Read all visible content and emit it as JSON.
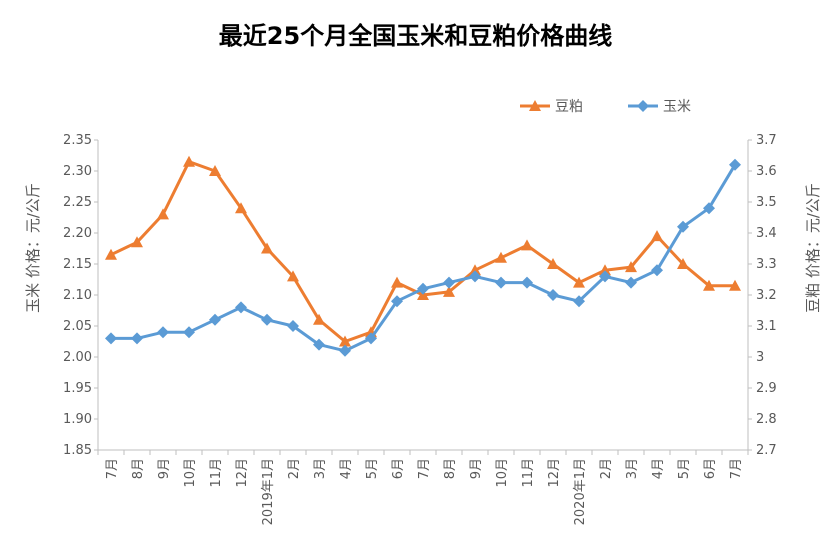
{
  "chart_data": {
    "type": "line",
    "title": "最近25个月全国玉米和豆粕价格曲线",
    "categories": [
      "7月",
      "8月",
      "9月",
      "10月",
      "11月",
      "12月",
      "2019年1月",
      "2月",
      "3月",
      "4月",
      "5月",
      "6月",
      "7月",
      "8月",
      "9月",
      "10月",
      "11月",
      "12月",
      "2020年1月",
      "2月",
      "3月",
      "4月",
      "5月",
      "6月",
      "7月"
    ],
    "ylabel_left": "玉米 价格：元/公斤",
    "ylabel_right": "豆粕 价格：元/公斤",
    "ylim_left": [
      1.85,
      2.35
    ],
    "ylim_right": [
      2.7,
      3.7
    ],
    "yticks_left": [
      "2.35",
      "2.30",
      "2.25",
      "2.20",
      "2.15",
      "2.10",
      "2.05",
      "2.00",
      "1.95",
      "1.90",
      "1.85"
    ],
    "yticks_right": [
      "3.7",
      "3.6",
      "3.5",
      "3.4",
      "3.3",
      "3.2",
      "3.1",
      "3",
      "2.9",
      "2.8",
      "2.7"
    ],
    "legend_position": "top-right",
    "grid": false,
    "series": [
      {
        "name": "豆粕",
        "axis": "right",
        "color": "#ED7D31",
        "marker": "triangle",
        "values": [
          3.33,
          3.37,
          3.46,
          3.63,
          3.6,
          3.48,
          3.35,
          3.26,
          3.12,
          3.05,
          3.08,
          3.24,
          3.2,
          3.21,
          3.28,
          3.32,
          3.36,
          3.3,
          3.24,
          3.28,
          3.29,
          3.39,
          3.3,
          3.23,
          3.23
        ]
      },
      {
        "name": "玉米",
        "axis": "left",
        "color": "#5B9BD5",
        "marker": "diamond",
        "values": [
          2.03,
          2.03,
          2.04,
          2.04,
          2.06,
          2.08,
          2.06,
          2.05,
          2.02,
          2.01,
          2.03,
          2.09,
          2.11,
          2.12,
          2.13,
          2.12,
          2.12,
          2.1,
          2.09,
          2.13,
          2.12,
          2.14,
          2.21,
          2.24,
          2.31
        ]
      }
    ]
  }
}
